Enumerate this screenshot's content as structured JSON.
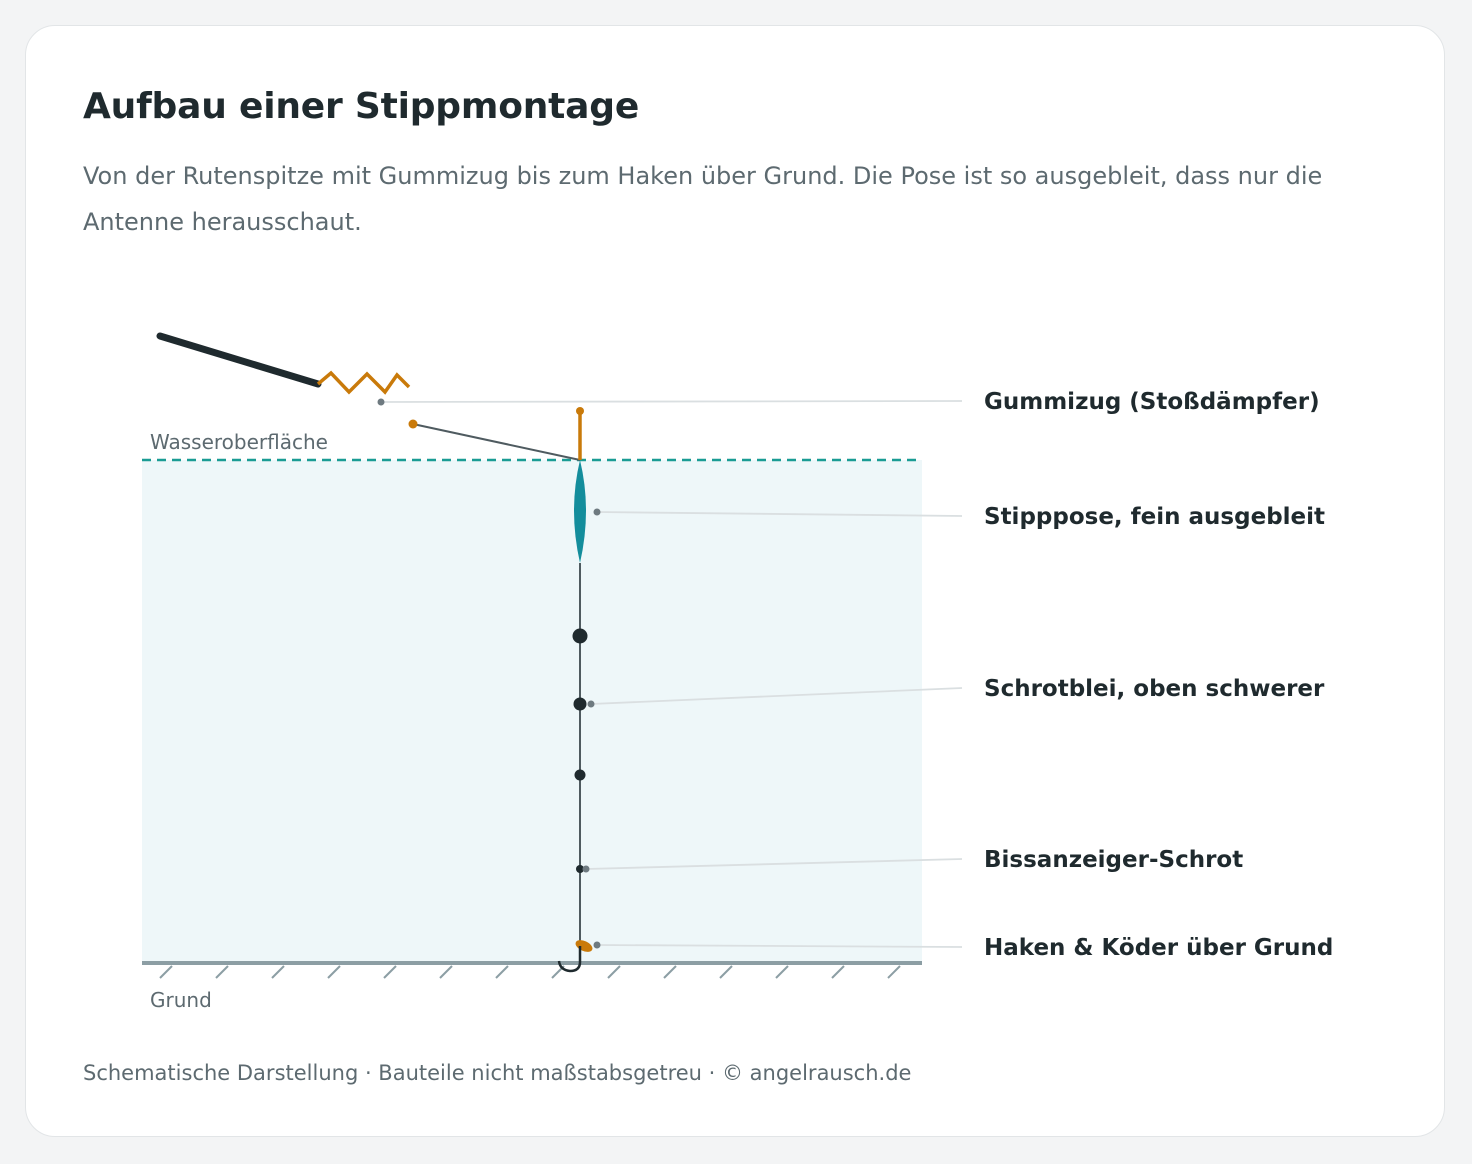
{
  "header": {
    "title": "Aufbau einer Stippmontage",
    "subtitle": "Von der Rutenspitze mit Gummizug bis zum Haken über Grund. Die Pose ist so ausgebleit, dass nur die Antenne herausschaut."
  },
  "diagram": {
    "surface_label": "Wasseroberfläche",
    "ground_label": "Grund",
    "callouts": {
      "gummizug": "Gummizug (Stoßdämpfer)",
      "pose": "Stipppose, fein ausgebleit",
      "schrot": "Schrotblei, oben schwerer",
      "bissanzeiger": "Bissanzeiger-Schrot",
      "haken": "Haken & Köder über Grund"
    },
    "colors": {
      "rod": "#1f2a2e",
      "elastic": "#c97a0a",
      "float": "#138d9c",
      "water": "#eef7f9",
      "surface_line": "#1a9c94",
      "ground": "#8c9ea4",
      "leader": "#c9d1d4"
    }
  },
  "footer": {
    "text": "Schematische Darstellung · Bauteile nicht maßstabsgetreu · © angelrausch.de"
  }
}
